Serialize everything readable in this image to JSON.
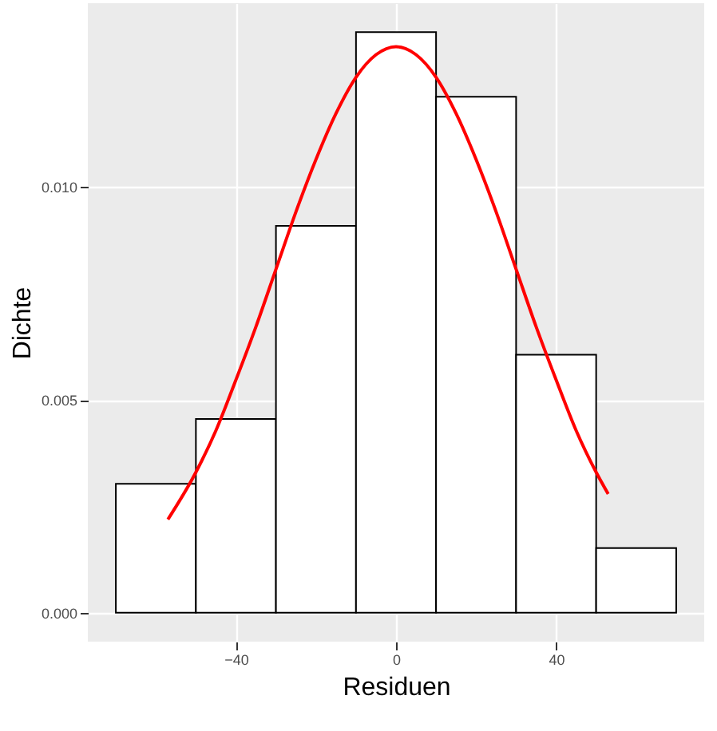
{
  "chart_data": {
    "type": "histogram",
    "xlabel": "Residuen",
    "ylabel": "Dichte",
    "bins": [
      -70,
      -50,
      -30,
      -10,
      10,
      30,
      50,
      70
    ],
    "values": [
      0.00303,
      0.00455,
      0.00909,
      0.01364,
      0.01212,
      0.00606,
      0.00152
    ],
    "color": "#ffffff",
    "series": [
      {
        "type": "line",
        "color": "#ff0000",
        "x": [
          -57,
          -50,
          -45,
          -40,
          -35,
          -30,
          -25,
          -20,
          -15,
          -10,
          -5,
          0,
          5,
          10,
          15,
          20,
          25,
          30,
          35,
          40,
          45,
          50,
          53
        ],
        "values": [
          0.00219,
          0.0033,
          0.00428,
          0.00547,
          0.00672,
          0.00807,
          0.00942,
          0.01065,
          0.01173,
          0.01258,
          0.01311,
          0.0133,
          0.01311,
          0.01258,
          0.01173,
          0.01065,
          0.00942,
          0.00807,
          0.00672,
          0.00547,
          0.00428,
          0.0033,
          0.00279
        ]
      }
    ],
    "xlim": [
      -77,
      77
    ],
    "xticks": [
      -40,
      0,
      40
    ],
    "ylim": [
      -0.00068,
      0.01432
    ],
    "yticks": [
      {
        "value": 0,
        "label": "0.000"
      },
      {
        "value": 0.005,
        "label": "0.005"
      },
      {
        "value": 0.01,
        "label": "0.010"
      }
    ],
    "grid": true
  }
}
